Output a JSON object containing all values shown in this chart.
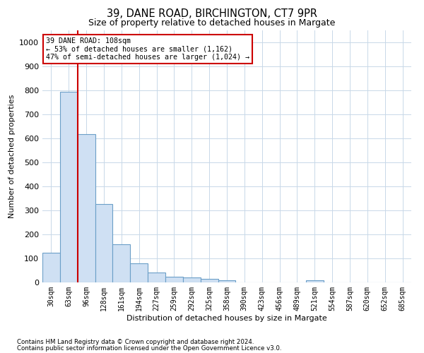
{
  "title1": "39, DANE ROAD, BIRCHINGTON, CT7 9PR",
  "title2": "Size of property relative to detached houses in Margate",
  "xlabel": "Distribution of detached houses by size in Margate",
  "ylabel": "Number of detached properties",
  "footnote1": "Contains HM Land Registry data © Crown copyright and database right 2024.",
  "footnote2": "Contains public sector information licensed under the Open Government Licence v3.0.",
  "categories": [
    "30sqm",
    "63sqm",
    "96sqm",
    "128sqm",
    "161sqm",
    "194sqm",
    "227sqm",
    "259sqm",
    "292sqm",
    "325sqm",
    "358sqm",
    "390sqm",
    "423sqm",
    "456sqm",
    "489sqm",
    "521sqm",
    "554sqm",
    "587sqm",
    "620sqm",
    "652sqm",
    "685sqm"
  ],
  "values": [
    122,
    793,
    617,
    327,
    158,
    78,
    40,
    24,
    21,
    14,
    8,
    0,
    0,
    0,
    0,
    10,
    0,
    0,
    0,
    0,
    0
  ],
  "bar_color": "#cfe0f3",
  "bar_edge_color": "#6b9fc8",
  "red_line_color": "#cc0000",
  "annotation_line1": "39 DANE ROAD: 108sqm",
  "annotation_line2": "← 53% of detached houses are smaller (1,162)",
  "annotation_line3": "47% of semi-detached houses are larger (1,024) →",
  "annotation_box_color": "#ffffff",
  "annotation_box_edge_color": "#cc0000",
  "ylim": [
    0,
    1050
  ],
  "yticks": [
    0,
    100,
    200,
    300,
    400,
    500,
    600,
    700,
    800,
    900,
    1000
  ],
  "bg_color": "#ffffff",
  "grid_color": "#c8d8e8",
  "title1_fontsize": 10.5,
  "title2_fontsize": 9,
  "tick_fontsize": 7,
  "ylabel_fontsize": 8,
  "xlabel_fontsize": 8
}
